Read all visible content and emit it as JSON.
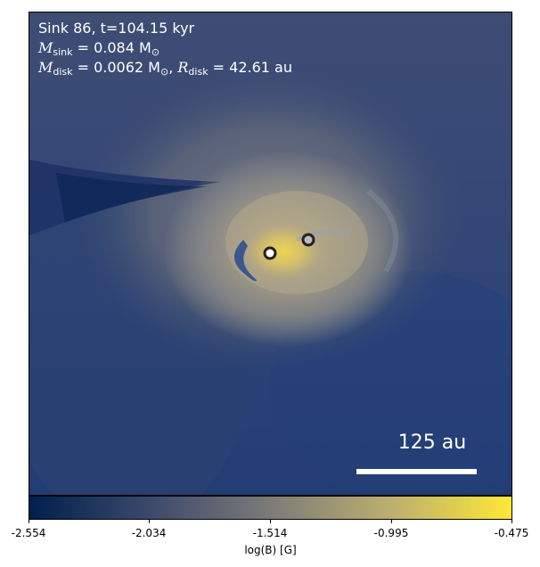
{
  "annotation": {
    "line1": "Sink 86, t=104.15 kyr",
    "msink_symbol": "M",
    "msink_sub": "sink",
    "msink_value": " = 0.084 M",
    "msink_unit_sub": "⊙",
    "mdisk_symbol": "M",
    "mdisk_sub": "disk",
    "mdisk_value": " = 0.0062 M",
    "mdisk_unit_sub": "⊙",
    "sep": ", ",
    "rdisk_symbol": "R",
    "rdisk_sub": "disk",
    "rdisk_value": " = 42.61 au"
  },
  "scale_bar": {
    "label": "125 au"
  },
  "colorbar": {
    "label": "log(B) [G]",
    "ticks": [
      "-2.554",
      "-2.034",
      "-1.514",
      "-0.995",
      "-0.475"
    ],
    "colors": [
      "#00204c",
      "#3b496c",
      "#7c7b78",
      "#bcaf6f",
      "#fde737"
    ]
  },
  "sinks": [
    {
      "name": "primary-sink",
      "fill": "#ffffff"
    },
    {
      "name": "secondary-sink",
      "fill": "#bbbbbb"
    }
  ]
}
